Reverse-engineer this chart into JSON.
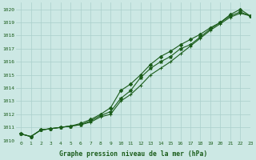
{
  "title": "Graphe pression niveau de la mer (hPa)",
  "background_color": "#cce8e4",
  "grid_color": "#aacfcb",
  "line_color": "#1a5c1a",
  "xlim": [
    -0.5,
    23
  ],
  "ylim": [
    1010,
    1020.5
  ],
  "ytick_min": 1010,
  "ytick_max": 1020,
  "series1": [
    1010.5,
    1010.3,
    1010.8,
    1010.9,
    1011.0,
    1011.1,
    1011.2,
    1011.5,
    1011.9,
    1012.2,
    1013.2,
    1013.8,
    1014.8,
    1015.5,
    1016.0,
    1016.4,
    1017.0,
    1017.3,
    1017.9,
    1018.5,
    1019.0,
    1019.5,
    1019.8,
    1019.5
  ],
  "series2": [
    1010.5,
    1010.3,
    1010.8,
    1010.9,
    1011.0,
    1011.1,
    1011.3,
    1011.6,
    1012.0,
    1012.5,
    1013.8,
    1014.3,
    1015.0,
    1015.8,
    1016.4,
    1016.8,
    1017.3,
    1017.7,
    1018.1,
    1018.6,
    1019.0,
    1019.6,
    1020.0,
    1019.5
  ],
  "series3": [
    1010.5,
    1010.3,
    1010.8,
    1010.9,
    1011.0,
    1011.1,
    1011.2,
    1011.4,
    1011.8,
    1012.0,
    1013.0,
    1013.5,
    1014.2,
    1015.0,
    1015.5,
    1016.0,
    1016.6,
    1017.2,
    1017.8,
    1018.4,
    1018.9,
    1019.4,
    1019.7,
    1019.5
  ],
  "marker1": "*",
  "marker2": "D",
  "marker3": "+",
  "markersize1": 3.5,
  "markersize2": 2.2,
  "markersize3": 3.5,
  "linewidth": 0.8,
  "tick_fontsize": 4.5,
  "xlabel_fontsize": 5.8
}
